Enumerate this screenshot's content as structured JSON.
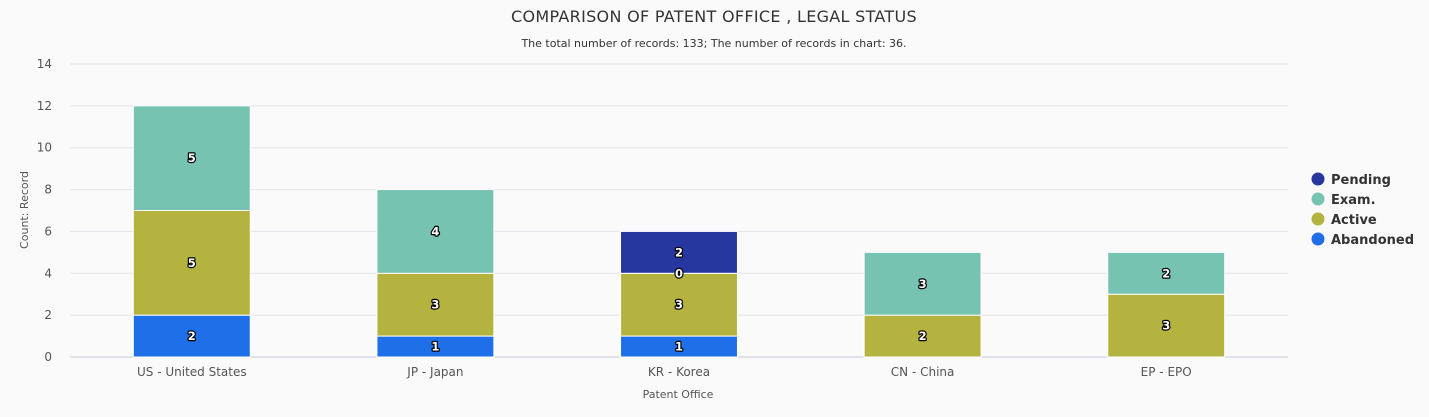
{
  "chart_data": {
    "type": "bar",
    "stacked": true,
    "title": "COMPARISON OF PATENT OFFICE , LEGAL STATUS",
    "subtitle": "The total number of records: 133; The number of records in chart: 36.",
    "xlabel": "Patent Office",
    "ylabel": "Count: Record",
    "ylim": [
      0,
      14
    ],
    "yticks": [
      0,
      2,
      4,
      6,
      8,
      10,
      12,
      14
    ],
    "grid": true,
    "legend_position": "right",
    "categories": [
      "US - United States",
      "JP - Japan",
      "KR - Korea",
      "CN - China",
      "EP - EPO"
    ],
    "series": [
      {
        "name": "Abandoned",
        "color": "#1f6fe8",
        "values": [
          2,
          1,
          1,
          null,
          null
        ]
      },
      {
        "name": "Active",
        "color": "#b5b340",
        "values": [
          5,
          3,
          3,
          2,
          3
        ]
      },
      {
        "name": "Exam.",
        "color": "#77c3b2",
        "values": [
          5,
          4,
          0,
          3,
          2
        ]
      },
      {
        "name": "Pending",
        "color": "#2637a0",
        "values": [
          null,
          null,
          2,
          null,
          null
        ]
      }
    ],
    "legend_order": [
      "Pending",
      "Exam.",
      "Active",
      "Abandoned"
    ]
  }
}
